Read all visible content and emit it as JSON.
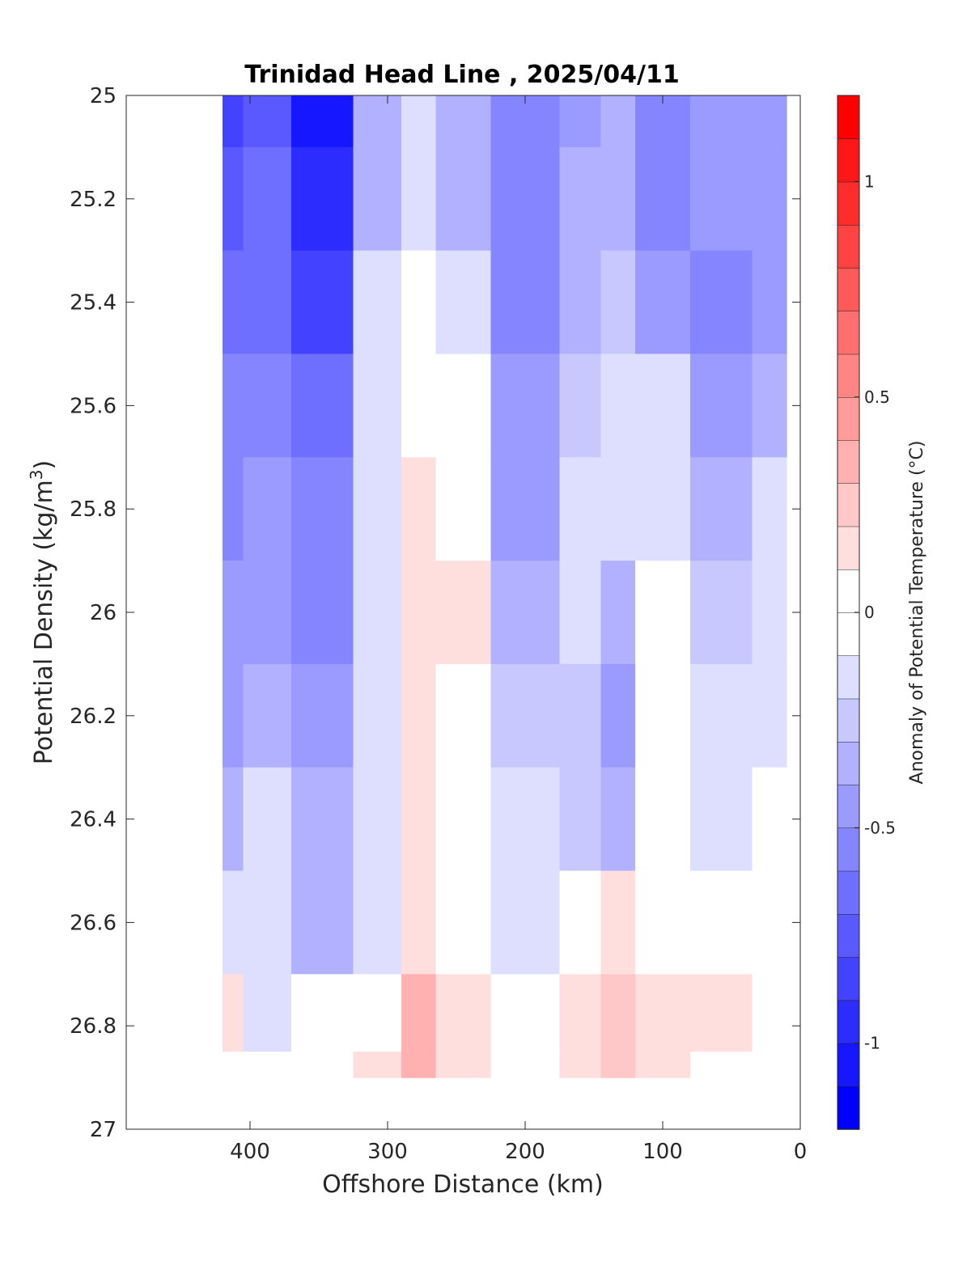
{
  "chart_data": {
    "type": "heatmap",
    "title": "Trinidad Head Line , 2025/04/11",
    "xlabel": "Offshore Distance (km)",
    "ylabel": "Potential Density (kg/m³)",
    "ylabel_main": "Potential Density (kg/m",
    "ylabel_sup": "3",
    "ylabel_close": ")",
    "xlim": [
      490,
      0
    ],
    "ylim": [
      25,
      27
    ],
    "x_reversed": true,
    "y_reversed": true,
    "xticks": [
      "400",
      "300",
      "200",
      "100",
      "0"
    ],
    "xtick_values": [
      400,
      300,
      200,
      100,
      0
    ],
    "yticks": [
      "25",
      "25.2",
      "25.4",
      "25.6",
      "25.8",
      "26",
      "26.2",
      "26.4",
      "26.6",
      "26.8",
      "27"
    ],
    "ytick_values": [
      25,
      25.2,
      25.4,
      25.6,
      25.8,
      26,
      26.2,
      26.4,
      26.6,
      26.8,
      27
    ],
    "grid": false,
    "data_x_range": [
      420,
      10
    ],
    "data_y_range": [
      25,
      26.9
    ],
    "colorbar": {
      "label": "Anomaly of Potential Temperature (°C)",
      "min": -1.2,
      "max": 1.2,
      "step": 0.1,
      "ticks": [
        "1",
        "0.5",
        "0",
        "-0.5",
        "-1"
      ],
      "tick_values": [
        1,
        0.5,
        0,
        -0.5,
        -1
      ]
    },
    "columns_x": [
      420,
      390,
      350,
      300,
      280,
      250,
      200,
      150,
      140,
      100,
      60,
      10
    ],
    "rows_y": [
      25.0,
      25.2,
      25.4,
      25.6,
      25.8,
      26.0,
      26.2,
      26.4,
      26.6,
      26.8,
      26.9
    ],
    "values": [
      [
        -0.8,
        -0.75,
        -1.05,
        -0.35,
        -0.2,
        -0.35,
        -0.55,
        -0.4,
        -0.35,
        -0.55,
        -0.45,
        -0.45
      ],
      [
        -0.75,
        -0.7,
        -0.95,
        -0.3,
        -0.15,
        -0.3,
        -0.55,
        -0.35,
        -0.35,
        -0.5,
        -0.45,
        -0.45
      ],
      [
        -0.65,
        -0.65,
        -0.8,
        -0.2,
        -0.05,
        -0.15,
        -0.5,
        -0.3,
        -0.25,
        -0.4,
        -0.5,
        -0.4
      ],
      [
        -0.55,
        -0.55,
        -0.6,
        -0.15,
        0.05,
        0.0,
        -0.45,
        -0.25,
        -0.2,
        -0.2,
        -0.45,
        -0.3
      ],
      [
        -0.5,
        -0.45,
        -0.55,
        -0.15,
        0.1,
        0.05,
        -0.4,
        -0.2,
        -0.15,
        -0.1,
        -0.35,
        -0.2
      ],
      [
        -0.45,
        -0.4,
        -0.55,
        -0.2,
        0.15,
        0.1,
        -0.3,
        -0.2,
        -0.35,
        -0.02,
        -0.25,
        -0.15
      ],
      [
        -0.4,
        -0.35,
        -0.4,
        -0.15,
        0.1,
        0.05,
        -0.25,
        -0.25,
        -0.4,
        -0.08,
        -0.1,
        -0.1
      ],
      [
        -0.35,
        -0.2,
        -0.35,
        -0.15,
        0.1,
        -0.02,
        -0.2,
        -0.25,
        -0.3,
        -0.05,
        -0.1,
        -0.05
      ],
      [
        -0.15,
        -0.2,
        -0.3,
        -0.1,
        0.2,
        0.05,
        -0.15,
        0.05,
        0.1,
        0.0,
        0.0,
        0.05
      ],
      [
        0.1,
        -0.1,
        -0.05,
        0.05,
        0.3,
        0.2,
        -0.05,
        0.15,
        0.25,
        0.15,
        0.1,
        0.02
      ],
      [
        0.05,
        0.0,
        0.0,
        0.1,
        0.3,
        0.2,
        0.0,
        0.2,
        0.25,
        0.2,
        0.05,
        0.02
      ]
    ]
  }
}
